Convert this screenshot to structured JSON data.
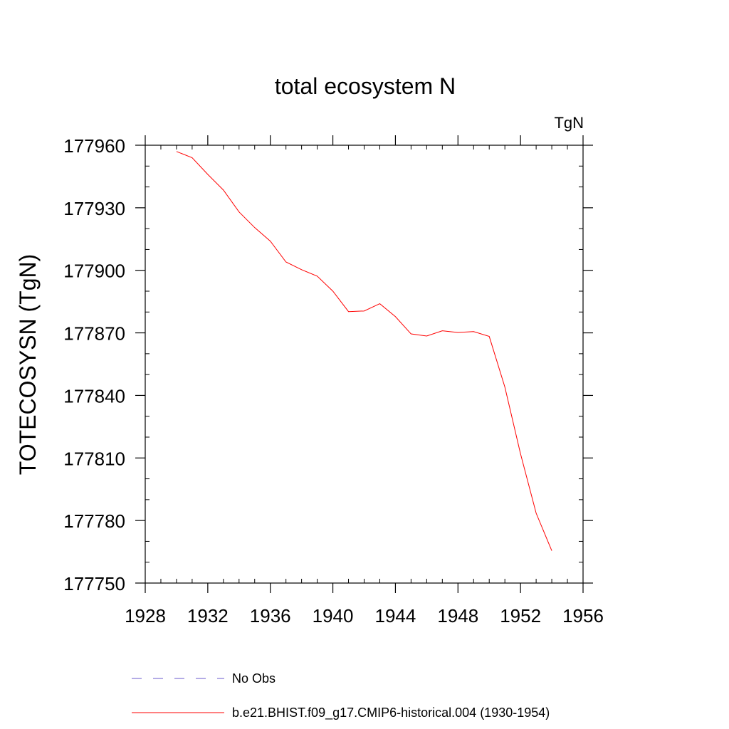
{
  "chart_data": {
    "type": "line",
    "title": "total ecosystem N",
    "units_label": "TgN",
    "ylabel": "TOTECOSYSN  (TgN)",
    "xlabel": "",
    "xlim": [
      1928,
      1956
    ],
    "ylim": [
      177750,
      177960
    ],
    "x_ticks": [
      1928,
      1932,
      1936,
      1940,
      1944,
      1948,
      1952,
      1956
    ],
    "y_ticks": [
      177750,
      177780,
      177810,
      177840,
      177870,
      177900,
      177930,
      177960
    ],
    "series": [
      {
        "name": "b.e21.BHIST.f09_g17.CMIP6-historical.004 (1930-1954)",
        "color": "#ff0000",
        "style": "solid",
        "x": [
          1930,
          1931,
          1932,
          1933,
          1934,
          1935,
          1936,
          1937,
          1938,
          1939,
          1940,
          1941,
          1942,
          1943,
          1944,
          1945,
          1946,
          1947,
          1948,
          1949,
          1950,
          1951,
          1952,
          1953,
          1954
        ],
        "y": [
          177957,
          177954,
          177946,
          177938.5,
          177928,
          177920.5,
          177914,
          177904,
          177900.3,
          177897.2,
          177890,
          177880.2,
          177880.5,
          177884,
          177877.8,
          177869.5,
          177868.5,
          177871,
          177870.2,
          177870.6,
          177868.3,
          177844,
          177812,
          177783.5,
          177765.5
        ]
      }
    ],
    "legend": [
      {
        "label": "No Obs",
        "color": "#6a5acd",
        "style": "dashed"
      },
      {
        "label": "b.e21.BHIST.f09_g17.CMIP6-historical.004 (1930-1954)",
        "color": "#ff0000",
        "style": "solid"
      }
    ]
  }
}
